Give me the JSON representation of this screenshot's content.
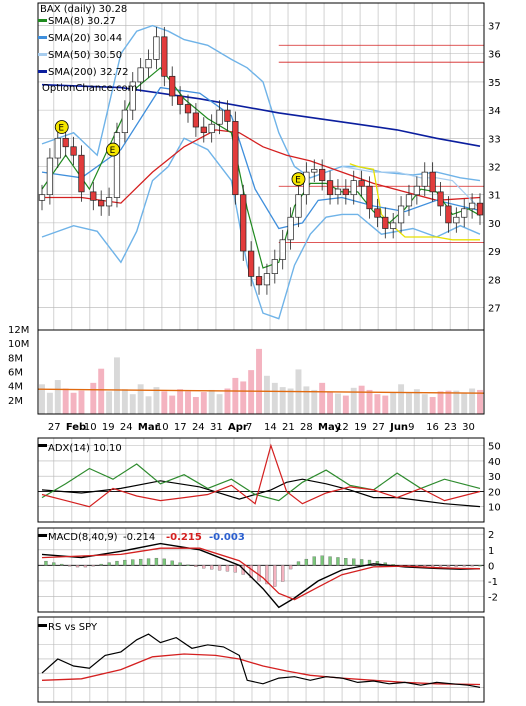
{
  "colors": {
    "price_up": "#1a1a1a",
    "price_down_fill": "#e23b3b",
    "sma8": "#1f8a1f",
    "sma20": "#3f8fdc",
    "sma50": "#a7cdef",
    "sma200": "#0b1e9e",
    "bollinger": "#6fb3e8",
    "red_line": "#d42020",
    "yellow_line": "#e8e000",
    "earnings_marker": "#f5e600",
    "volume_up": "#d9d9d9",
    "volume_down": "#f4b3c0",
    "volume_avg": "#e06a10",
    "adx": "#000000",
    "di_plus": "#2e8b2e",
    "di_minus": "#d42020",
    "macd": "#000000",
    "signal": "#d42020",
    "hist_up": "#7ac67a",
    "hist_down": "#f4b3c0",
    "rs": "#000000",
    "rs_ma": "#d42020",
    "grid": "#b5b5b5"
  },
  "chart_data": [
    {
      "type": "line",
      "panel": "price",
      "title": "BAX (daily) 30.28",
      "watermark": "OptionChance.com",
      "legend_position": "top-left",
      "legend": [
        {
          "name": "SMA(8) 30.27",
          "color_key": "sma8"
        },
        {
          "name": "SMA(20) 30.44",
          "color_key": "sma20"
        },
        {
          "name": "SMA(50) 30.50",
          "color_key": "sma50"
        },
        {
          "name": "SMA(200) 32.72",
          "color_key": "sma200"
        }
      ],
      "x_tick_labels": [
        "27",
        "Feb",
        "10",
        "19",
        "24",
        "Mar",
        "10",
        "17",
        "24",
        "31",
        "Apr",
        "7",
        "14",
        "21",
        "28",
        "May",
        "12",
        "19",
        "27",
        "Jun",
        "9",
        "16",
        "23",
        "30"
      ],
      "y_tick_labels": [
        37,
        36,
        35,
        34,
        33,
        32,
        31,
        30,
        29,
        28,
        27
      ],
      "ylim": [
        26.2,
        37.8
      ],
      "grid": true,
      "price_series": {
        "t": [
          0,
          2,
          4,
          6,
          8,
          10,
          13,
          15,
          17,
          19,
          21,
          23,
          25,
          27,
          29,
          31,
          33,
          35,
          37,
          39,
          41,
          43,
          45,
          47,
          49,
          51,
          53,
          55,
          57,
          59,
          61,
          63,
          65,
          67,
          69,
          71,
          73,
          75,
          77,
          79,
          81,
          83,
          85,
          87,
          89,
          91,
          93,
          95,
          97,
          99,
          101,
          103,
          105,
          107,
          109,
          111
        ],
        "close": [
          31.0,
          32.3,
          33.0,
          32.7,
          32.4,
          31.1,
          30.8,
          30.6,
          30.9,
          33.2,
          34.0,
          35.0,
          35.5,
          35.8,
          36.6,
          35.2,
          34.5,
          34.2,
          33.9,
          33.4,
          33.2,
          33.5,
          34.0,
          33.6,
          31.0,
          29.0,
          28.1,
          27.8,
          28.2,
          28.7,
          29.4,
          30.2,
          31.0,
          31.8,
          31.9,
          31.5,
          31.0,
          31.2,
          31.0,
          31.5,
          31.3,
          30.5,
          30.2,
          29.8,
          30.0,
          30.6,
          31.0,
          31.3,
          31.8,
          31.1,
          30.6,
          30.0,
          30.2,
          30.5,
          30.7,
          30.28
        ],
        "earnings_events": [
          5,
          18,
          65
        ]
      },
      "overlays": {
        "sma8": {
          "t": [
            0,
            6,
            12,
            18,
            24,
            30,
            36,
            42,
            48,
            52,
            56,
            60,
            64,
            68,
            72,
            76,
            80,
            84,
            88,
            92,
            96,
            100,
            104,
            108,
            111
          ],
          "v": [
            31.2,
            32.4,
            31.2,
            33.0,
            34.8,
            35.5,
            34.4,
            33.7,
            33.2,
            30.5,
            28.4,
            28.6,
            30.6,
            31.4,
            31.4,
            31.1,
            31.1,
            30.4,
            30.0,
            30.5,
            31.2,
            31.1,
            30.3,
            30.5,
            30.27
          ]
        },
        "sma20": {
          "t": [
            0,
            10,
            20,
            30,
            40,
            48,
            54,
            60,
            66,
            70,
            76,
            84,
            92,
            100,
            106,
            111
          ],
          "v": [
            31.8,
            31.6,
            32.6,
            34.8,
            34.6,
            33.8,
            31.2,
            29.8,
            30.0,
            30.8,
            30.9,
            30.6,
            30.4,
            30.8,
            30.6,
            30.44
          ]
        },
        "sma50": {
          "t": [
            76,
            84,
            90,
            96,
            100,
            104,
            111
          ],
          "v": [
            32.0,
            31.8,
            31.8,
            31.6,
            31.6,
            31.5,
            30.5
          ]
        },
        "sma200": {
          "t": [
            0,
            20,
            40,
            60,
            70,
            80,
            90,
            100,
            111
          ],
          "v": [
            34.9,
            34.8,
            34.4,
            33.9,
            33.7,
            33.5,
            33.3,
            33.0,
            32.72
          ]
        },
        "red_line": {
          "t": [
            0,
            10,
            20,
            28,
            36,
            44,
            50,
            56,
            62,
            68,
            76,
            84,
            92,
            100,
            111
          ],
          "v": [
            30.9,
            30.9,
            30.7,
            31.8,
            32.7,
            33.3,
            33.2,
            32.7,
            32.4,
            32.2,
            31.8,
            31.4,
            31.1,
            30.8,
            30.9
          ]
        },
        "yellow_line": {
          "t": [
            78,
            80,
            84,
            86,
            88,
            92,
            96,
            100,
            104,
            108,
            111
          ],
          "v": [
            32.1,
            32.0,
            31.9,
            30.3,
            30.0,
            29.5,
            29.5,
            29.5,
            29.4,
            29.4,
            29.4
          ]
        },
        "bollinger_upper": {
          "t": [
            0,
            8,
            14,
            20,
            24,
            28,
            32,
            36,
            42,
            48,
            52,
            56,
            60,
            64,
            68,
            72,
            76,
            80,
            86,
            94,
            100,
            106,
            111
          ],
          "v": [
            32.8,
            33.2,
            32.4,
            36.0,
            36.8,
            37.0,
            36.8,
            36.5,
            36.3,
            35.8,
            35.5,
            35.0,
            33.2,
            32.0,
            31.6,
            31.8,
            32.0,
            32.0,
            31.8,
            31.7,
            31.8,
            31.6,
            31.5
          ]
        },
        "bollinger_lower": {
          "t": [
            0,
            8,
            14,
            20,
            24,
            28,
            32,
            36,
            42,
            48,
            52,
            56,
            60,
            64,
            68,
            72,
            76,
            80,
            86,
            94,
            100,
            106,
            111
          ],
          "v": [
            29.5,
            29.9,
            29.7,
            28.6,
            29.7,
            31.5,
            32.0,
            33.0,
            32.6,
            31.5,
            28.5,
            26.8,
            26.6,
            28.5,
            29.6,
            30.2,
            30.3,
            30.3,
            29.6,
            29.8,
            29.5,
            29.9,
            29.6
          ]
        }
      },
      "horizontal_lines": [
        36.3,
        35.7,
        31.3,
        29.3
      ]
    },
    {
      "type": "bar",
      "panel": "volume",
      "y_tick_labels": [
        "12M",
        "10M",
        "8M",
        "6M",
        "4M",
        "2M"
      ],
      "ylim": [
        0,
        13000000
      ],
      "volume_series": {
        "t": [
          0,
          2,
          4,
          6,
          8,
          10,
          13,
          15,
          17,
          19,
          21,
          23,
          25,
          27,
          29,
          31,
          33,
          35,
          37,
          39,
          41,
          43,
          45,
          47,
          49,
          51,
          53,
          55,
          57,
          59,
          61,
          63,
          65,
          67,
          69,
          71,
          73,
          75,
          77,
          79,
          81,
          83,
          85,
          87,
          89,
          91,
          93,
          95,
          97,
          99,
          101,
          103,
          105,
          107,
          109,
          111
        ],
        "v": [
          4200000,
          3000000,
          4800000,
          3600000,
          3000000,
          3300000,
          4400000,
          6400000,
          3200000,
          8000000,
          3500000,
          2800000,
          4200000,
          2500000,
          3800000,
          3200000,
          2600000,
          3500000,
          3200000,
          2400000,
          3100000,
          3400000,
          2800000,
          3600000,
          5100000,
          4600000,
          6200000,
          9200000,
          5400000,
          4400000,
          3800000,
          3600000,
          6300000,
          3900000,
          3400000,
          4400000,
          3100000,
          2900000,
          2600000,
          3700000,
          4000000,
          3400000,
          2800000,
          2600000,
          3100000,
          4200000,
          3000000,
          3500000,
          2800000,
          2400000,
          3200000,
          3300000,
          3300000,
          2900000,
          3600000,
          3400000
        ],
        "avg_volume": 3500000
      }
    },
    {
      "type": "line",
      "panel": "adx",
      "title": "ADX(14) 10.10",
      "y_tick_labels": [
        50,
        40,
        30,
        20,
        10
      ],
      "ylim": [
        0,
        55
      ],
      "series": [
        {
          "name": "ADX(14) 10.10",
          "t": [
            0,
            10,
            20,
            30,
            40,
            50,
            58,
            62,
            66,
            72,
            78,
            84,
            90,
            96,
            102,
            111
          ],
          "v": [
            21,
            19,
            22,
            27,
            23,
            15,
            21,
            26,
            28,
            25,
            21,
            16,
            16,
            14,
            12,
            10.1
          ]
        },
        {
          "t": [
            0,
            6,
            12,
            18,
            24,
            30,
            36,
            42,
            48,
            54,
            60,
            66,
            72,
            78,
            84,
            90,
            96,
            102,
            111
          ],
          "v": [
            16,
            25,
            35,
            28,
            38,
            25,
            31,
            22,
            28,
            18,
            14,
            26,
            34,
            24,
            21,
            32,
            22,
            28,
            22
          ]
        },
        {
          "t": [
            0,
            6,
            12,
            18,
            24,
            30,
            36,
            42,
            48,
            54,
            58,
            62,
            66,
            72,
            78,
            84,
            90,
            96,
            102,
            111
          ],
          "v": [
            18,
            14,
            10,
            22,
            17,
            14,
            16,
            18,
            24,
            12,
            50,
            20,
            12,
            19,
            23,
            21,
            16,
            22,
            14,
            20
          ]
        }
      ],
      "reference_line": 20
    },
    {
      "type": "line",
      "panel": "macd",
      "title": "MACD(8,40,9) -0.214, -0.215, -0.003",
      "legend_values": [
        "-0.214",
        "-0.215",
        "-0.003"
      ],
      "y_tick_labels": [
        2,
        1,
        0,
        -1,
        -2
      ],
      "ylim": [
        -3,
        2.4
      ],
      "series": [
        {
          "name": "MACD(8,40,9)",
          "t": [
            0,
            10,
            20,
            30,
            40,
            50,
            56,
            60,
            64,
            70,
            76,
            84,
            92,
            100,
            106,
            111
          ],
          "v": [
            0.7,
            0.5,
            0.9,
            1.4,
            1.0,
            0.0,
            -1.5,
            -2.7,
            -2.1,
            -1.0,
            -0.3,
            0.1,
            -0.1,
            -0.2,
            -0.25,
            -0.214
          ]
        },
        {
          "t": [
            0,
            10,
            20,
            30,
            40,
            50,
            56,
            60,
            64,
            70,
            76,
            84,
            92,
            100,
            106,
            111
          ],
          "v": [
            0.5,
            0.6,
            0.7,
            1.1,
            1.1,
            0.3,
            -0.8,
            -1.8,
            -2.2,
            -1.4,
            -0.6,
            -0.1,
            -0.05,
            -0.15,
            -0.2,
            -0.215
          ]
        }
      ],
      "reference_line": 0
    },
    {
      "type": "line",
      "panel": "relative_strength",
      "title": "RS vs SPY",
      "ylim": [
        0,
        1
      ],
      "series": [
        {
          "name": "RS vs SPY",
          "t": [
            0,
            4,
            8,
            12,
            16,
            20,
            24,
            27,
            30,
            34,
            38,
            42,
            46,
            50,
            52,
            56,
            60,
            64,
            68,
            72,
            76,
            80,
            84,
            88,
            92,
            96,
            100,
            104,
            108,
            111
          ],
          "v": [
            0.35,
            0.55,
            0.45,
            0.42,
            0.6,
            0.65,
            0.82,
            0.9,
            0.78,
            0.85,
            0.7,
            0.75,
            0.72,
            0.6,
            0.25,
            0.2,
            0.28,
            0.3,
            0.25,
            0.3,
            0.28,
            0.22,
            0.24,
            0.2,
            0.22,
            0.18,
            0.22,
            0.2,
            0.18,
            0.15
          ]
        },
        {
          "t": [
            0,
            10,
            20,
            28,
            36,
            44,
            50,
            56,
            62,
            68,
            76,
            84,
            92,
            100,
            111
          ],
          "v": [
            0.25,
            0.27,
            0.4,
            0.58,
            0.62,
            0.6,
            0.55,
            0.45,
            0.38,
            0.32,
            0.28,
            0.25,
            0.22,
            0.2,
            0.19
          ]
        }
      ]
    }
  ]
}
